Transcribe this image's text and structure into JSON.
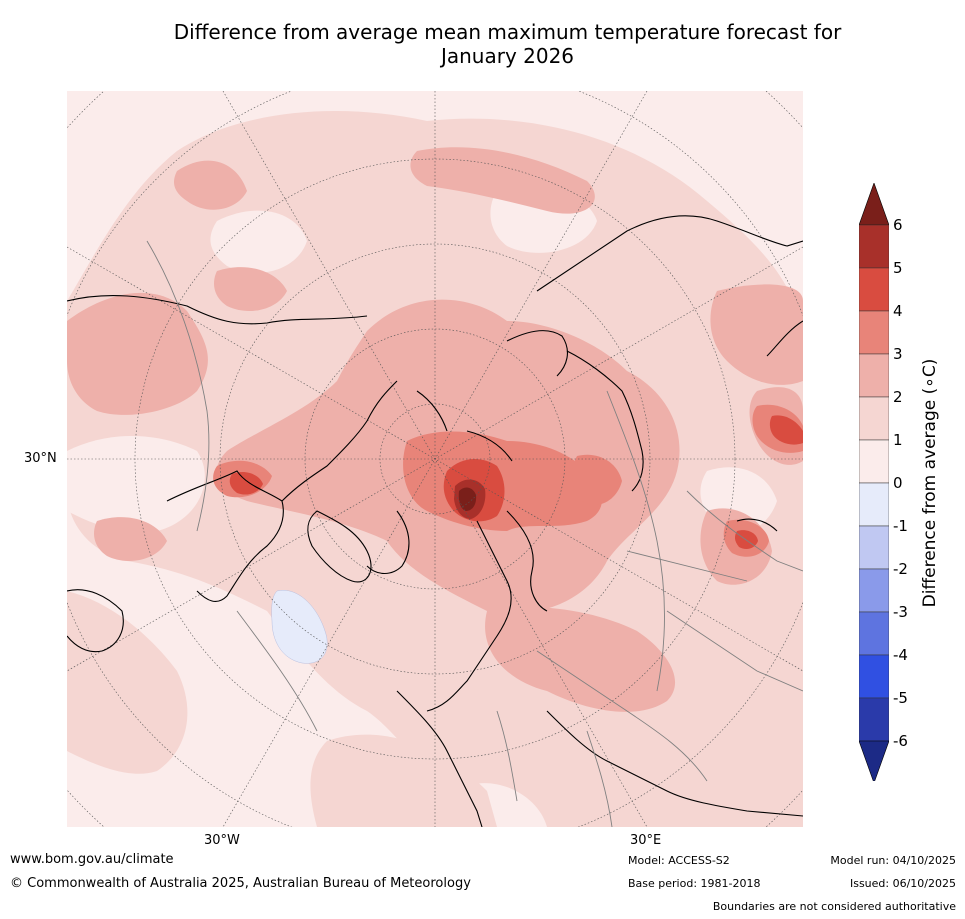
{
  "title_line1": "Difference from average mean maximum temperature forecast for",
  "title_line2": "January 2026",
  "map": {
    "labels": {
      "lat_30n": "30°N",
      "lon_30w": "30°W",
      "lon_30e": "30°E"
    },
    "colors": {
      "land_line": "#000000",
      "border_line": "#808080",
      "graticule": "#555555"
    }
  },
  "colorbar": {
    "title": "Difference from average (∘C)",
    "ticks": [
      "6",
      "5",
      "4",
      "3",
      "2",
      "1",
      "0",
      "-1",
      "-2",
      "-3",
      "-4",
      "-5",
      "-6"
    ],
    "bins": [
      {
        "from": 5,
        "to": 6,
        "color": "#a8302a"
      },
      {
        "from": 4,
        "to": 5,
        "color": "#d94c40"
      },
      {
        "from": 3,
        "to": 4,
        "color": "#e88479"
      },
      {
        "from": 2,
        "to": 3,
        "color": "#eeb0aa"
      },
      {
        "from": 1,
        "to": 2,
        "color": "#f5d6d2"
      },
      {
        "from": 0,
        "to": 1,
        "color": "#fbeceb"
      },
      {
        "from": -1,
        "to": 0,
        "color": "#e6ebfa"
      },
      {
        "from": -2,
        "to": -1,
        "color": "#c0c8f2"
      },
      {
        "from": -3,
        "to": -2,
        "color": "#8a9aea"
      },
      {
        "from": -4,
        "to": -3,
        "color": "#5e74e0"
      },
      {
        "from": -5,
        "to": -4,
        "color": "#3050e2"
      },
      {
        "from": -6,
        "to": -5,
        "color": "#2a3aaa"
      }
    ],
    "over_color": "#7a1f1a",
    "under_color": "#1c2a86"
  },
  "footer": {
    "url": "www.bom.gov.au/climate",
    "copyright": "© Commonwealth of Australia 2025, Australian Bureau of Meteorology",
    "model": "Model: ACCESS-S2",
    "base_period": "Base period: 1981-2018",
    "model_run": "Model run: 04/10/2025",
    "issued": "Issued: 06/10/2025",
    "disclaimer": "Boundaries are not considered authoritative"
  }
}
